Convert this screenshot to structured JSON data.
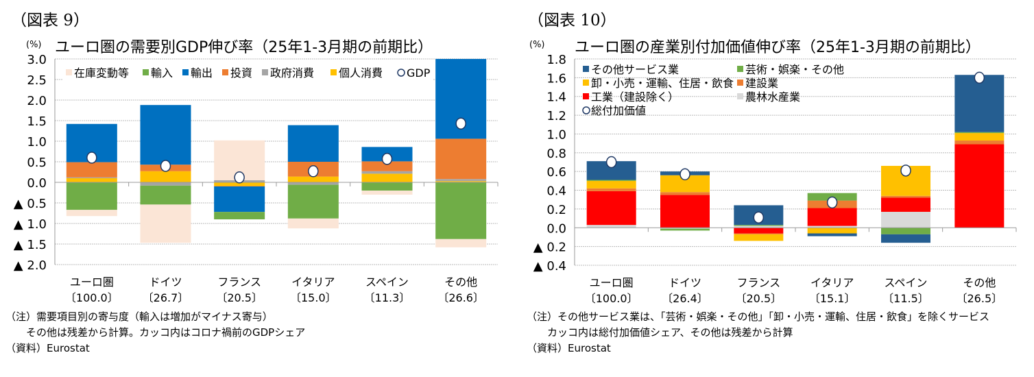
{
  "left": {
    "figure_label": "（図表 9）",
    "title": "ユーロ圏の需要別GDP伸び率（25年1-3月期の前期比）",
    "unit": "(%)",
    "notes": [
      "（注）需要項目別の寄与度（輸入は増加がマイナス寄与）",
      "　　その他は残差から計算。カッコ内はコロナ禍前のGDPシェア",
      "（資料）Eurostat"
    ]
  },
  "right": {
    "figure_label": "（図表 10）",
    "title": "ユーロ圏の産業別付加価値伸び率（25年1-3月期の前期比）",
    "unit": "(%)",
    "notes": [
      "（注）その他サービス業は、「芸術・娯楽・その他」「卸・小売・運輸、住居・飲食」を除くサービス",
      "　　カッコ内は総付加価値シェア、その他は残差から計算",
      "（資料）Eurostat"
    ]
  },
  "chart_data": [
    {
      "type": "bar",
      "stacked": true,
      "title": "ユーロ圏の需要別GDP伸び率（25年1-3月期の前期比）",
      "ylabel": "(%)",
      "ylim": [
        -2.0,
        3.0
      ],
      "yticks": [
        3.0,
        2.5,
        2.0,
        1.5,
        1.0,
        0.5,
        0.0,
        -0.5,
        -1.0,
        -1.5,
        -2.0
      ],
      "ytick_labels": [
        "3.0",
        "2.5",
        "2.0",
        "1.5",
        "1.0",
        "0.5",
        "0.0",
        "▲ 0.5",
        "▲ 1.0",
        "▲ 1.5",
        "▲ 2.0"
      ],
      "grid": true,
      "legend": "top",
      "categories": [
        "ユーロ圏",
        "ドイツ",
        "フランス",
        "イタリア",
        "スペイン",
        "その他"
      ],
      "category_shares": [
        "〔100.0〕",
        "〔26.7〕",
        "〔20.5〕",
        "〔15.0〕",
        "〔11.3〕",
        "〔26.6〕"
      ],
      "series": [
        {
          "name": "個人消費",
          "color": "#FFC000",
          "values": [
            0.1,
            0.27,
            -0.09,
            0.14,
            0.21,
            0.03
          ]
        },
        {
          "name": "政府消費",
          "color": "#A5A5A5",
          "values": [
            0.02,
            -0.08,
            0.05,
            -0.06,
            0.06,
            0.05
          ]
        },
        {
          "name": "投資",
          "color": "#ED7D31",
          "values": [
            0.37,
            0.16,
            -0.01,
            0.36,
            0.24,
            0.98
          ]
        },
        {
          "name": "輸出",
          "color": "#0070C0",
          "values": [
            0.93,
            1.45,
            -0.62,
            0.89,
            0.35,
            1.96
          ]
        },
        {
          "name": "輸入",
          "color": "#70AD47",
          "values": [
            -0.67,
            -0.46,
            -0.18,
            -0.82,
            -0.2,
            -1.38
          ]
        },
        {
          "name": "在庫変動等",
          "color": "#FBE5D6",
          "values": [
            -0.15,
            -0.93,
            0.97,
            -0.24,
            -0.1,
            -0.2
          ]
        }
      ],
      "legend_order": [
        5,
        4,
        3,
        2,
        1,
        0
      ],
      "marker_series": {
        "name": "GDP",
        "values": [
          0.6,
          0.4,
          0.12,
          0.27,
          0.57,
          1.43
        ]
      }
    },
    {
      "type": "bar",
      "stacked": true,
      "title": "ユーロ圏の産業別付加価値伸び率（25年1-3月期の前期比）",
      "ylabel": "(%)",
      "ylim": [
        -0.4,
        1.8
      ],
      "yticks": [
        1.8,
        1.6,
        1.4,
        1.2,
        1.0,
        0.8,
        0.6,
        0.4,
        0.2,
        0.0,
        -0.2,
        -0.4
      ],
      "ytick_labels": [
        "1.8",
        "1.6",
        "1.4",
        "1.2",
        "1.0",
        "0.8",
        "0.6",
        "0.4",
        "0.2",
        "0.0",
        "▲ 0.2",
        "▲ 0.4"
      ],
      "grid": true,
      "legend": "top-left",
      "categories": [
        "ユーロ圏",
        "ドイツ",
        "フランス",
        "イタリア",
        "スペイン",
        "その他"
      ],
      "category_shares": [
        "〔100.0〕",
        "〔26.4〕",
        "〔20.5〕",
        "〔15.1〕",
        "〔11.5〕",
        "〔26.5〕"
      ],
      "series": [
        {
          "name": "農林水産業",
          "color": "#D9D9D9",
          "values": [
            0.03,
            -0.01,
            0.02,
            0.02,
            0.17,
            0.0
          ]
        },
        {
          "name": "工業（建設除く）",
          "color": "#FF0000",
          "values": [
            0.36,
            0.35,
            -0.06,
            0.19,
            0.15,
            0.89
          ]
        },
        {
          "name": "建設業",
          "color": "#ED7D31",
          "values": [
            0.03,
            0.03,
            -0.01,
            0.08,
            0.02,
            0.04
          ]
        },
        {
          "name": "卸・小売・運輸、住居・飲食",
          "color": "#FFC000",
          "values": [
            0.08,
            0.18,
            -0.07,
            -0.06,
            0.32,
            0.08
          ]
        },
        {
          "name": "芸術・娯楽・その他",
          "color": "#70AD47",
          "values": [
            0.01,
            -0.02,
            0.01,
            0.08,
            -0.07,
            0.01
          ]
        },
        {
          "name": "その他サービス業",
          "color": "#255E91",
          "values": [
            0.2,
            0.04,
            0.21,
            -0.03,
            -0.09,
            0.61
          ]
        }
      ],
      "legend_order": [
        5,
        4,
        3,
        2,
        1,
        0
      ],
      "marker_series": {
        "name": "総付加価値",
        "values": [
          0.7,
          0.57,
          0.11,
          0.27,
          0.61,
          1.6
        ]
      }
    }
  ]
}
